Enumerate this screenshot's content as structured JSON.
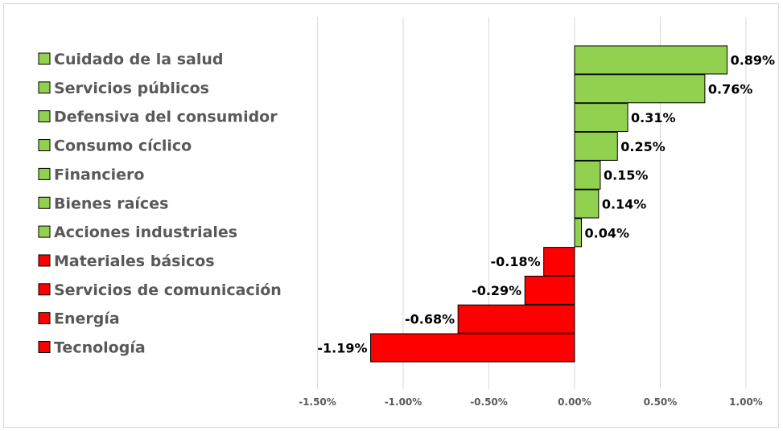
{
  "chart_data": {
    "type": "bar",
    "orientation": "horizontal",
    "categories": [
      "Cuidado de la salud",
      "Servicios públicos",
      "Defensiva del consumidor",
      "Consumo cíclico",
      "Financiero",
      "Bienes raíces",
      "Acciones industriales",
      "Materiales básicos",
      "Servicios de comunicación",
      "Energía",
      "Tecnología"
    ],
    "values": [
      0.89,
      0.76,
      0.31,
      0.25,
      0.15,
      0.14,
      0.04,
      -0.18,
      -0.29,
      -0.68,
      -1.19
    ],
    "value_labels": [
      "0.89%",
      "0.76%",
      "0.31%",
      "0.25%",
      "0.15%",
      "0.14%",
      "0.04%",
      "-0.18%",
      "-0.29%",
      "-0.68%",
      "-1.19%"
    ],
    "x_ticks": [
      -1.5,
      -1.0,
      -0.5,
      0.0,
      0.5,
      1.0
    ],
    "x_tick_labels": [
      "-1.50%",
      "-1.00%",
      "-0.50%",
      "0.00%",
      "0.50%",
      "1.00%"
    ],
    "xlim": [
      -1.5,
      1.0
    ],
    "grid": "vertical",
    "legend_position": "left",
    "colors": {
      "positive": "#92d050",
      "negative": "#ff0000",
      "gridline": "#d9d9d9",
      "bar_border": "#000000"
    },
    "title": "",
    "xlabel": "",
    "ylabel": ""
  }
}
